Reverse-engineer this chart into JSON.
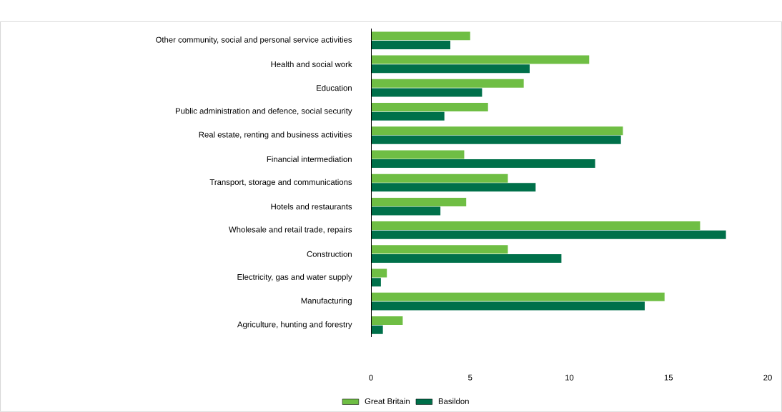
{
  "chart_data": {
    "type": "bar",
    "orientation": "horizontal",
    "categories": [
      "Other community, social and personal service activities",
      "Health and social work",
      "Education",
      "Public administration and defence, social security",
      "Real estate, renting and business activities",
      "Financial intermediation",
      "Transport, storage and communications",
      "Hotels and restaurants",
      "Wholesale and retail trade, repairs",
      "Construction",
      "Electricity, gas and water supply",
      "Manufacturing",
      "Agriculture, hunting and forestry"
    ],
    "series": [
      {
        "name": "Great Britain",
        "color": "#6fbe44",
        "values": [
          5.0,
          11.0,
          7.7,
          5.9,
          12.7,
          4.7,
          6.9,
          4.8,
          16.6,
          6.9,
          0.8,
          14.8,
          1.6
        ]
      },
      {
        "name": "Basildon",
        "color": "#00704a",
        "values": [
          4.0,
          8.0,
          5.6,
          3.7,
          12.6,
          11.3,
          8.3,
          3.5,
          17.9,
          9.6,
          0.5,
          13.8,
          0.6
        ]
      }
    ],
    "xlim": [
      0,
      20
    ],
    "xticks": [
      0,
      5,
      10,
      15,
      20
    ],
    "grid": false,
    "legend": "bottom"
  }
}
